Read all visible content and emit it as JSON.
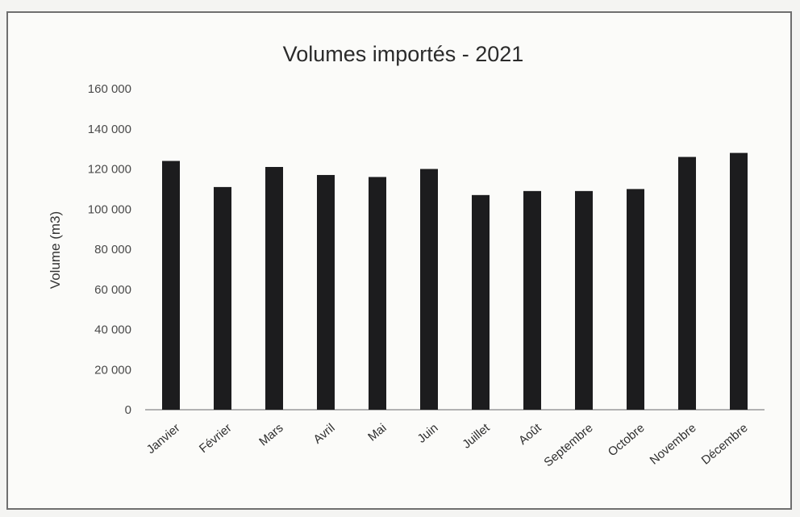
{
  "chart_data": {
    "type": "bar",
    "title": "Volumes importés - 2021",
    "ylabel": "Volume (m3)",
    "xlabel": "",
    "categories": [
      "Janvier",
      "Février",
      "Mars",
      "Avril",
      "Mai",
      "Juin",
      "Juillet",
      "Août",
      "Septembre",
      "Octobre",
      "Novembre",
      "Décembre"
    ],
    "values": [
      124000,
      111000,
      121000,
      117000,
      116000,
      120000,
      107000,
      109000,
      109000,
      110000,
      126000,
      128000
    ],
    "ylim": [
      0,
      160000
    ],
    "yticks": [
      "0",
      "20 000",
      "40 000",
      "60 000",
      "80 000",
      "100 000",
      "120 000",
      "140 000",
      "160 000"
    ],
    "grid": false,
    "legend": "none",
    "bar_color": "#1c1c1e"
  }
}
